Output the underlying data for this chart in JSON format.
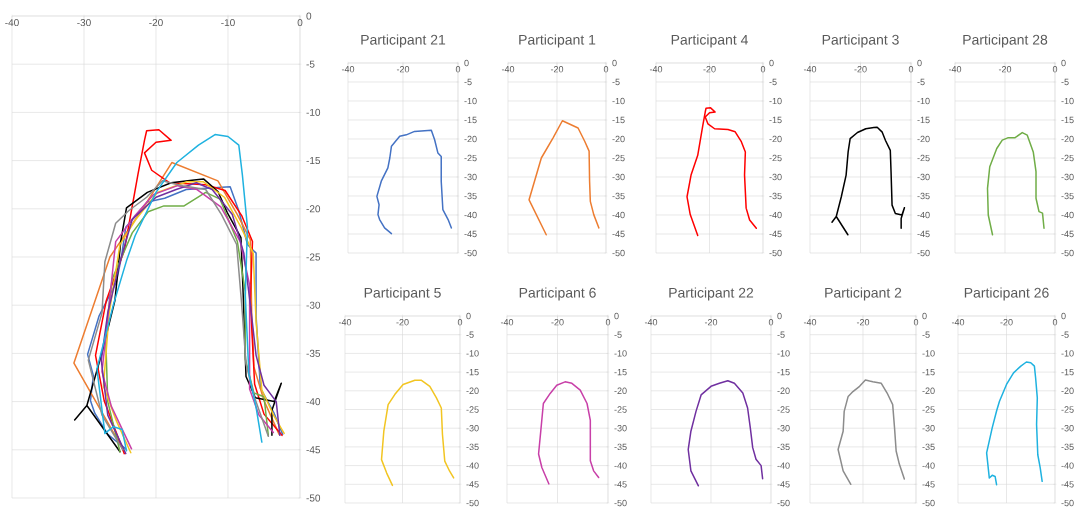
{
  "chart_data": [
    {
      "type": "line",
      "xlim": [
        -40,
        0
      ],
      "ylim": [
        -50,
        0
      ],
      "xticks": [
        -40,
        -30,
        -20,
        -10,
        0
      ],
      "yticks": [
        -50,
        -45,
        -40,
        -35,
        -30,
        -25,
        -20,
        -15,
        -10,
        -5,
        0
      ],
      "grid": true,
      "series": [
        {
          "color": "#4472c4",
          "x": [
            -24.2,
            -26.7,
            -28.5,
            -29.1,
            -28.7,
            -29.5,
            -27.9,
            -25.5,
            -24.8,
            -24.2,
            -21.2,
            -18.8,
            -15.8,
            -9.7,
            -8.5,
            -7.3,
            -6.1,
            -6.1,
            -5.5,
            -3.6,
            -2.4
          ],
          "values": [
            -44.9,
            -43.4,
            -41.2,
            -39.9,
            -37.3,
            -35.1,
            -31.1,
            -27.6,
            -25,
            -21.9,
            -19.3,
            -18.9,
            -18,
            -17.7,
            -20.2,
            -23.7,
            -24.6,
            -31.1,
            -38.6,
            -41.2,
            -43.4
          ]
        },
        {
          "color": "#ed7d31",
          "x": [
            -24.4,
            -31.4,
            -26.4,
            -21.6,
            -17.8,
            -11.4,
            -8.7,
            -6.9,
            -6.7,
            -6.4,
            -5,
            -2.9
          ],
          "values": [
            -45.2,
            -36,
            -25,
            -19.7,
            -15.2,
            -17.1,
            -20.6,
            -23.2,
            -31.1,
            -36.4,
            -39.9,
            -43.4
          ]
        },
        {
          "color": "#ff0000",
          "x": [
            -24.4,
            -27.2,
            -28.4,
            -26.9,
            -24.4,
            -22.5,
            -21.6,
            -21.3,
            -19.6,
            -17.9,
            -20,
            -21.6,
            -20.6,
            -18.1,
            -13.1,
            -10.4,
            -8.1,
            -6.6,
            -6.9,
            -6.3,
            -5,
            -2.5
          ],
          "values": [
            -45.4,
            -39.9,
            -35.2,
            -29.5,
            -24.3,
            -16.4,
            -12.9,
            -11.9,
            -11.8,
            -12.9,
            -13.1,
            -14.2,
            -16,
            -17.3,
            -17.5,
            -18.1,
            -20.7,
            -23.4,
            -29.5,
            -38.2,
            -41.3,
            -43.5
          ]
        },
        {
          "color": "#000000",
          "x": [
            -25,
            -29.6,
            -31.3,
            -29.6,
            -27.6,
            -25.7,
            -24.9,
            -24.1,
            -21.2,
            -17.9,
            -14.7,
            -13.4,
            -11.4,
            -10.1,
            -8.2,
            -7.9,
            -7.5,
            -6.2,
            -3.6,
            -2.6,
            -3.9,
            -3.9
          ],
          "values": [
            -45.2,
            -40.4,
            -41.9,
            -40.4,
            -35.2,
            -29.5,
            -23.4,
            -19.9,
            -18.3,
            -17.3,
            -17,
            -16.9,
            -18.2,
            -20.4,
            -23,
            -28.7,
            -37.4,
            -39.6,
            -40,
            -38.1,
            -40.9,
            -43.5
          ]
        },
        {
          "color": "#70ad47",
          "x": [
            -25,
            -26.7,
            -27,
            -26.1,
            -23.3,
            -21.1,
            -18.9,
            -16.1,
            -13.1,
            -11.1,
            -8.7,
            -7.6,
            -7.6,
            -6.4,
            -5,
            -4.4
          ],
          "values": [
            -45.2,
            -40,
            -33,
            -27.3,
            -22.5,
            -20.3,
            -19.7,
            -19.7,
            -18.3,
            -19,
            -23.4,
            -28.6,
            -35.6,
            -39.1,
            -39.5,
            -43.5
          ]
        },
        {
          "color": "#f2c522",
          "x": [
            -23.5,
            -25.5,
            -27.3,
            -26.5,
            -25,
            -22.7,
            -19.8,
            -15.7,
            -13.4,
            -10.5,
            -8.2,
            -6.5,
            -6.1,
            -5.3,
            -3.6,
            -2.2
          ],
          "values": [
            -45.3,
            -42,
            -38.4,
            -30.8,
            -23.7,
            -21,
            -18.3,
            -17.2,
            -17.2,
            -18.8,
            -21.9,
            -24.6,
            -31.7,
            -38.8,
            -41.5,
            -43.3
          ]
        },
        {
          "color": "#c83fa8",
          "x": [
            -23.4,
            -26.2,
            -27.5,
            -26.6,
            -25.6,
            -22.9,
            -20.3,
            -17,
            -14.3,
            -11,
            -8.3,
            -7,
            -7,
            -5.7,
            -3.7
          ],
          "values": [
            -44.9,
            -40.5,
            -36.9,
            -30.6,
            -23.4,
            -20.7,
            -18.5,
            -17.6,
            -18,
            -19.8,
            -23.4,
            -27.9,
            -38.7,
            -41.4,
            -43.2
          ]
        },
        {
          "color": "#7030a0",
          "x": [
            -24.2,
            -26.7,
            -27.6,
            -26.7,
            -25,
            -23.3,
            -20,
            -17.2,
            -14.4,
            -12.2,
            -9.4,
            -7.8,
            -6.9,
            -6.1,
            -5,
            -3.3,
            -2.8
          ],
          "values": [
            -45.4,
            -41.4,
            -35.7,
            -30.8,
            -25.5,
            -21.1,
            -18.8,
            -18,
            -17.3,
            -18,
            -20.6,
            -24.6,
            -29.9,
            -35.2,
            -38.3,
            -40,
            -43.5
          ]
        },
        {
          "color": "#8c8c8c",
          "x": [
            -24.6,
            -27.5,
            -29.4,
            -27.5,
            -27.1,
            -25.6,
            -23.8,
            -21.3,
            -19.1,
            -17.5,
            -16.3,
            -13.1,
            -10.9,
            -8.8,
            -8.1,
            -7.5,
            -6.3,
            -4.4
          ],
          "values": [
            -45,
            -41.4,
            -35.7,
            -30.8,
            -25.5,
            -21.5,
            -20.2,
            -18.8,
            -17.1,
            -17.4,
            -17.6,
            -18,
            -20.6,
            -23.7,
            -29.9,
            -36.1,
            -39.6,
            -43.6
          ]
        },
        {
          "color": "#1fb2e0",
          "x": [
            -24.1,
            -24.7,
            -25.9,
            -27.1,
            -28.2,
            -25.9,
            -24.1,
            -22.9,
            -20,
            -17.1,
            -14.1,
            -11.8,
            -10,
            -8.5,
            -8,
            -7.3,
            -7.6,
            -7.1,
            -6.1,
            -5.3
          ],
          "values": [
            -45.1,
            -42.9,
            -42.6,
            -43.3,
            -36.6,
            -29.9,
            -25.4,
            -22.8,
            -18.3,
            -15.2,
            -13.4,
            -12.3,
            -12.5,
            -13.4,
            -16.5,
            -21.9,
            -29,
            -37.1,
            -40.6,
            -44.2
          ]
        }
      ]
    },
    {
      "type": "line",
      "title": "Participant 21",
      "xlim": [
        -40,
        0
      ],
      "ylim": [
        -50,
        0
      ],
      "xticks": [
        -40,
        -20,
        0
      ],
      "yticks": [
        -50,
        -45,
        -40,
        -35,
        -30,
        -25,
        -20,
        -15,
        -10,
        -5,
        0
      ],
      "grid": true,
      "series": [
        {
          "color": "#4472c4",
          "x": [
            -24.2,
            -26.7,
            -28.5,
            -29.1,
            -28.7,
            -29.5,
            -27.9,
            -25.5,
            -24.8,
            -24.2,
            -21.2,
            -18.8,
            -15.8,
            -9.7,
            -8.5,
            -7.3,
            -6.1,
            -6.1,
            -5.5,
            -3.6,
            -2.4
          ],
          "values": [
            -44.9,
            -43.4,
            -41.2,
            -39.9,
            -37.3,
            -35.1,
            -31.1,
            -27.6,
            -25,
            -21.9,
            -19.3,
            -18.9,
            -18,
            -17.7,
            -20.2,
            -23.7,
            -24.6,
            -31.1,
            -38.6,
            -41.2,
            -43.4
          ]
        }
      ]
    },
    {
      "type": "line",
      "title": "Participant 1",
      "xlim": [
        -40,
        0
      ],
      "ylim": [
        -50,
        0
      ],
      "xticks": [
        -40,
        -20,
        0
      ],
      "yticks": [
        -50,
        -45,
        -40,
        -35,
        -30,
        -25,
        -20,
        -15,
        -10,
        -5,
        0
      ],
      "grid": true,
      "series": [
        {
          "color": "#ed7d31",
          "x": [
            -24.4,
            -31.4,
            -26.4,
            -21.6,
            -17.8,
            -11.4,
            -8.7,
            -6.9,
            -6.7,
            -6.4,
            -5,
            -2.9
          ],
          "values": [
            -45.2,
            -36,
            -25,
            -19.7,
            -15.2,
            -17.1,
            -20.6,
            -23.2,
            -31.1,
            -36.4,
            -39.9,
            -43.4
          ]
        }
      ]
    },
    {
      "type": "line",
      "title": "Participant 4",
      "xlim": [
        -40,
        0
      ],
      "ylim": [
        -50,
        0
      ],
      "xticks": [
        -40,
        -20,
        0
      ],
      "yticks": [
        -50,
        -45,
        -40,
        -35,
        -30,
        -25,
        -20,
        -15,
        -10,
        -5,
        0
      ],
      "grid": true,
      "series": [
        {
          "color": "#ff0000",
          "x": [
            -24.4,
            -27.2,
            -28.4,
            -26.9,
            -24.4,
            -22.5,
            -21.6,
            -21.3,
            -19.6,
            -17.9,
            -20,
            -21.6,
            -20.6,
            -18.1,
            -13.1,
            -10.4,
            -8.1,
            -6.6,
            -6.9,
            -6.3,
            -5,
            -2.5
          ],
          "values": [
            -45.4,
            -39.9,
            -35.2,
            -29.5,
            -24.3,
            -16.4,
            -12.9,
            -11.9,
            -11.8,
            -12.9,
            -13.1,
            -14.2,
            -16,
            -17.3,
            -17.5,
            -18.1,
            -20.7,
            -23.4,
            -29.5,
            -38.2,
            -41.3,
            -43.5
          ]
        }
      ]
    },
    {
      "type": "line",
      "title": "Participant 3",
      "xlim": [
        -40,
        0
      ],
      "ylim": [
        -50,
        0
      ],
      "xticks": [
        -40,
        -20,
        0
      ],
      "yticks": [
        -50,
        -45,
        -40,
        -35,
        -30,
        -25,
        -20,
        -15,
        -10,
        -5,
        0
      ],
      "grid": true,
      "series": [
        {
          "color": "#000000",
          "x": [
            -25,
            -29.6,
            -31.3,
            -29.6,
            -27.6,
            -25.7,
            -24.9,
            -24.1,
            -21.2,
            -17.9,
            -14.7,
            -13.4,
            -11.4,
            -10.1,
            -8.2,
            -7.9,
            -7.5,
            -6.2,
            -3.6,
            -2.6,
            -3.9,
            -3.9
          ],
          "values": [
            -45.2,
            -40.4,
            -41.9,
            -40.4,
            -35.2,
            -29.5,
            -23.4,
            -19.9,
            -18.3,
            -17.3,
            -17,
            -16.9,
            -18.2,
            -20.4,
            -23,
            -28.7,
            -37.4,
            -39.6,
            -40,
            -38.1,
            -40.9,
            -43.5
          ]
        }
      ]
    },
    {
      "type": "line",
      "title": "Participant 28",
      "xlim": [
        -40,
        0
      ],
      "ylim": [
        -50,
        0
      ],
      "xticks": [
        -40,
        -20,
        0
      ],
      "yticks": [
        -50,
        -45,
        -40,
        -35,
        -30,
        -25,
        -20,
        -15,
        -10,
        -5,
        0
      ],
      "grid": true,
      "series": [
        {
          "color": "#70ad47",
          "x": [
            -25,
            -26.7,
            -27,
            -26.1,
            -23.3,
            -21.1,
            -18.9,
            -16.1,
            -13.1,
            -11.1,
            -8.7,
            -7.6,
            -7.6,
            -6.4,
            -5,
            -4.4
          ],
          "values": [
            -45.2,
            -40,
            -33,
            -27.3,
            -22.5,
            -20.3,
            -19.7,
            -19.7,
            -18.3,
            -19,
            -23.4,
            -28.6,
            -35.6,
            -39.1,
            -39.5,
            -43.5
          ]
        }
      ]
    },
    {
      "type": "line",
      "title": "Participant 5",
      "xlim": [
        -40,
        0
      ],
      "ylim": [
        -50,
        0
      ],
      "xticks": [
        -40,
        -20,
        0
      ],
      "yticks": [
        -50,
        -45,
        -40,
        -35,
        -30,
        -25,
        -20,
        -15,
        -10,
        -5,
        0
      ],
      "grid": true,
      "series": [
        {
          "color": "#f2c522",
          "x": [
            -23.5,
            -25.5,
            -27.3,
            -26.5,
            -25,
            -22.7,
            -19.8,
            -15.7,
            -13.4,
            -10.5,
            -8.2,
            -6.5,
            -6.1,
            -5.3,
            -3.6,
            -2.2
          ],
          "values": [
            -45.3,
            -42,
            -38.4,
            -30.8,
            -23.7,
            -21,
            -18.3,
            -17.2,
            -17.2,
            -18.8,
            -21.9,
            -24.6,
            -31.7,
            -38.8,
            -41.5,
            -43.3
          ]
        }
      ]
    },
    {
      "type": "line",
      "title": "Participant 6",
      "xlim": [
        -40,
        0
      ],
      "ylim": [
        -50,
        0
      ],
      "xticks": [
        -40,
        -20,
        0
      ],
      "yticks": [
        -50,
        -45,
        -40,
        -35,
        -30,
        -25,
        -20,
        -15,
        -10,
        -5,
        0
      ],
      "grid": true,
      "series": [
        {
          "color": "#c83fa8",
          "x": [
            -23.4,
            -26.2,
            -27.5,
            -26.6,
            -25.6,
            -22.9,
            -20.3,
            -17,
            -14.3,
            -11,
            -8.3,
            -7,
            -7,
            -5.7,
            -3.7
          ],
          "values": [
            -44.9,
            -40.5,
            -36.9,
            -30.6,
            -23.4,
            -20.7,
            -18.5,
            -17.6,
            -18,
            -19.8,
            -23.4,
            -27.9,
            -38.7,
            -41.4,
            -43.2
          ]
        }
      ]
    },
    {
      "type": "line",
      "title": "Participant 22",
      "xlim": [
        -40,
        0
      ],
      "ylim": [
        -50,
        0
      ],
      "xticks": [
        -40,
        -20,
        0
      ],
      "yticks": [
        -50,
        -45,
        -40,
        -35,
        -30,
        -25,
        -20,
        -15,
        -10,
        -5,
        0
      ],
      "grid": true,
      "series": [
        {
          "color": "#7030a0",
          "x": [
            -24.2,
            -26.7,
            -27.6,
            -26.7,
            -25,
            -23.3,
            -20,
            -17.2,
            -14.4,
            -12.2,
            -9.4,
            -7.8,
            -6.9,
            -6.1,
            -5,
            -3.3,
            -2.8
          ],
          "values": [
            -45.4,
            -41.4,
            -35.7,
            -30.8,
            -25.5,
            -21.1,
            -18.8,
            -18,
            -17.3,
            -18,
            -20.6,
            -24.6,
            -29.9,
            -35.2,
            -38.3,
            -40,
            -43.5
          ]
        }
      ]
    },
    {
      "type": "line",
      "title": "Participant 2",
      "xlim": [
        -40,
        0
      ],
      "ylim": [
        -50,
        0
      ],
      "xticks": [
        -40,
        -20,
        0
      ],
      "yticks": [
        -50,
        -45,
        -40,
        -35,
        -30,
        -25,
        -20,
        -15,
        -10,
        -5,
        0
      ],
      "grid": true,
      "series": [
        {
          "color": "#8c8c8c",
          "x": [
            -24.6,
            -27.5,
            -29.4,
            -27.5,
            -27.1,
            -25.6,
            -23.8,
            -21.3,
            -19.1,
            -17.5,
            -16.3,
            -13.1,
            -10.9,
            -8.8,
            -8.1,
            -7.5,
            -6.3,
            -4.4
          ],
          "values": [
            -45,
            -41.4,
            -35.7,
            -30.8,
            -25.5,
            -21.5,
            -20.2,
            -18.8,
            -17.1,
            -17.4,
            -17.6,
            -18,
            -20.6,
            -23.7,
            -29.9,
            -36.1,
            -39.6,
            -43.6
          ]
        }
      ]
    },
    {
      "type": "line",
      "title": "Participant 26",
      "xlim": [
        -40,
        0
      ],
      "ylim": [
        -50,
        0
      ],
      "xticks": [
        -40,
        -20,
        0
      ],
      "yticks": [
        -50,
        -45,
        -40,
        -35,
        -30,
        -25,
        -20,
        -15,
        -10,
        -5,
        0
      ],
      "grid": true,
      "series": [
        {
          "color": "#1fb2e0",
          "x": [
            -24.1,
            -24.7,
            -25.9,
            -27.1,
            -28.2,
            -25.9,
            -24.1,
            -22.9,
            -20,
            -17.1,
            -14.1,
            -11.8,
            -10,
            -8.5,
            -8,
            -7.3,
            -7.6,
            -7.1,
            -6.1,
            -5.3
          ],
          "values": [
            -45.1,
            -42.9,
            -42.6,
            -43.3,
            -36.6,
            -29.9,
            -25.4,
            -22.8,
            -18.3,
            -15.2,
            -13.4,
            -12.3,
            -12.5,
            -13.4,
            -16.5,
            -21.9,
            -29,
            -37.1,
            -40.6,
            -44.2
          ]
        }
      ]
    }
  ]
}
